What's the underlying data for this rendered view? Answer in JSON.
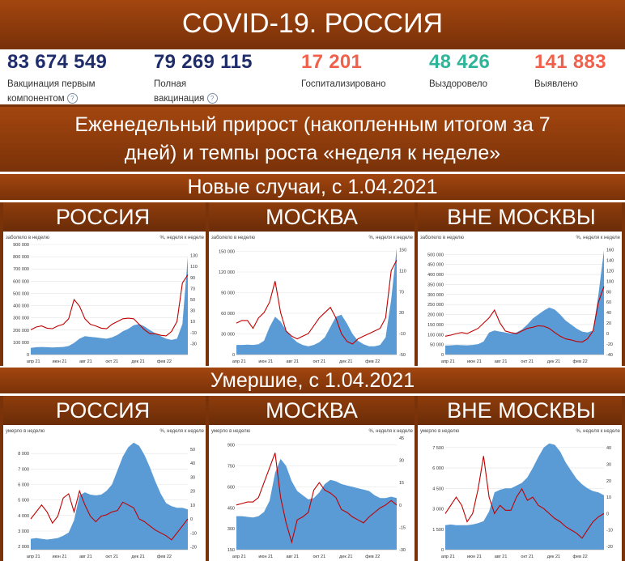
{
  "title": "COVID-19. РОССИЯ",
  "stats": [
    {
      "value": "83 674 549",
      "label1": "Вакцинация первым",
      "label2": "компонентом",
      "help": "?",
      "color": "#1f2d6b"
    },
    {
      "value": "79 269 115",
      "label1": "Полная",
      "label2": "вакцинация",
      "help": "?",
      "color": "#1f2d6b"
    },
    {
      "value": "17 201",
      "label1": "Госпитализировано",
      "label2": "",
      "help": "",
      "color": "#f0604a"
    },
    {
      "value": "48 426",
      "label1": "Выздоровело",
      "label2": "",
      "help": "",
      "color": "#2fb69a"
    },
    {
      "value": "141 883",
      "label1": "Выявлено",
      "label2": "",
      "help": "",
      "color": "#f0604a"
    }
  ],
  "weekly_heading_line1": "Еженедельный прирост (накопленным итогом за 7",
  "weekly_heading_line2": "дней) и темпы роста «неделя к неделе»",
  "section_new_cases": "Новые случаи, с 1.04.2021",
  "section_deaths": "Умершие, с 1.04.2021",
  "regions": [
    "РОССИЯ",
    "МОСКВА",
    "ВНЕ МОСКВЫ"
  ],
  "colors": {
    "area": "#5b9bd5",
    "line": "#c00000",
    "band": "#8f3d0c"
  },
  "chart_data": [
    {
      "type": "area",
      "title": "РОССИЯ — новые случаи",
      "left_label": "заболело в неделю",
      "right_label": "%, неделя к неделе",
      "ylim": [
        0,
        900000
      ],
      "yticks": [
        0,
        100000,
        200000,
        300000,
        400000,
        500000,
        600000,
        700000,
        800000,
        900000
      ],
      "ylabels": [
        "0",
        "100 000",
        "200 000",
        "300 000",
        "400 000",
        "500 000",
        "600 000",
        "700 000",
        "800 000",
        "900 000"
      ],
      "y2lim": [
        -50,
        150
      ],
      "y2ticks": [
        -30,
        -10,
        10,
        30,
        50,
        70,
        90,
        110,
        130
      ],
      "y2labels": [
        "-30",
        "-10",
        "10",
        "30",
        "50",
        "70",
        "90",
        "110",
        "130"
      ],
      "xticks": [
        "апр 21",
        "июн 21",
        "авг 21",
        "окт 21",
        "дек 21",
        "фев 22"
      ],
      "area": [
        55000,
        60000,
        62000,
        60000,
        58000,
        60000,
        62000,
        70000,
        95000,
        130000,
        150000,
        145000,
        140000,
        135000,
        130000,
        140000,
        160000,
        190000,
        210000,
        240000,
        250000,
        230000,
        200000,
        175000,
        150000,
        130000,
        120000,
        130000,
        250000,
        800000
      ],
      "line": [
        -5,
        0,
        2,
        -2,
        -3,
        2,
        5,
        15,
        50,
        38,
        15,
        5,
        2,
        -2,
        -3,
        5,
        10,
        15,
        16,
        15,
        5,
        -5,
        -12,
        -12,
        -15,
        -16,
        -8,
        10,
        80,
        95
      ]
    },
    {
      "type": "area",
      "title": "МОСКВА — новые случаи",
      "left_label": "заболело в неделю",
      "right_label": "%, неделя к неделе",
      "ylim": [
        0,
        160000
      ],
      "yticks": [
        0,
        30000,
        60000,
        90000,
        120000,
        150000
      ],
      "ylabels": [
        "0",
        "30 000",
        "60 000",
        "90 000",
        "120 000",
        "150 000"
      ],
      "y2lim": [
        -50,
        160
      ],
      "y2ticks": [
        -50,
        -10,
        30,
        70,
        110,
        150
      ],
      "y2labels": [
        "-50",
        "-10",
        "30",
        "70",
        "110",
        "150"
      ],
      "xticks": [
        "апр 21",
        "июн 21",
        "авг 21",
        "окт 21",
        "дек 21",
        "фев 22"
      ],
      "area": [
        14000,
        14000,
        14500,
        14000,
        15000,
        20000,
        40000,
        55000,
        48000,
        35000,
        25000,
        18000,
        14000,
        12000,
        14000,
        18000,
        25000,
        40000,
        55000,
        58000,
        45000,
        30000,
        20000,
        15000,
        12000,
        12000,
        14000,
        25000,
        80000,
        155000
      ],
      "line": [
        10,
        15,
        15,
        0,
        20,
        30,
        50,
        90,
        30,
        -5,
        -15,
        -20,
        -15,
        -10,
        5,
        20,
        30,
        40,
        20,
        -10,
        -25,
        -30,
        -20,
        -15,
        -10,
        -5,
        0,
        20,
        110,
        130
      ]
    },
    {
      "type": "area",
      "title": "ВНЕ МОСКВЫ — новые случаи",
      "left_label": "заболело в неделю",
      "right_label": "%, неделя к неделе",
      "ylim": [
        0,
        550000
      ],
      "yticks": [
        0,
        50000,
        100000,
        150000,
        200000,
        250000,
        300000,
        350000,
        400000,
        450000,
        500000
      ],
      "ylabels": [
        "0",
        "50 000",
        "100 000",
        "150 000",
        "200 000",
        "250 000",
        "300 000",
        "350 000",
        "400 000",
        "450 000",
        "500 000"
      ],
      "y2lim": [
        -40,
        170
      ],
      "y2ticks": [
        -40,
        -20,
        0,
        20,
        40,
        60,
        80,
        100,
        120,
        140,
        160
      ],
      "y2labels": [
        "-40",
        "-20",
        "0",
        "20",
        "40",
        "60",
        "80",
        "100",
        "120",
        "140",
        "160"
      ],
      "xticks": [
        "апр 21",
        "июн 21",
        "авг 21",
        "окт 21",
        "дек 21",
        "фев 22"
      ],
      "area": [
        45000,
        46000,
        48000,
        47000,
        46000,
        48000,
        52000,
        65000,
        110000,
        120000,
        115000,
        110000,
        105000,
        110000,
        125000,
        150000,
        180000,
        200000,
        220000,
        235000,
        225000,
        200000,
        170000,
        150000,
        130000,
        115000,
        110000,
        120000,
        300000,
        520000
      ],
      "line": [
        -5,
        -3,
        0,
        2,
        0,
        5,
        10,
        20,
        30,
        45,
        20,
        5,
        2,
        0,
        5,
        10,
        12,
        15,
        14,
        10,
        2,
        -5,
        -10,
        -12,
        -15,
        -16,
        -10,
        5,
        60,
        90
      ]
    },
    {
      "type": "area",
      "title": "РОССИЯ — умершие",
      "left_label": "умерло в неделю",
      "right_label": "%, неделя к неделе",
      "ylim": [
        1800,
        9000
      ],
      "yticks": [
        2000,
        3000,
        4000,
        5000,
        6000,
        7000,
        8000
      ],
      "ylabels": [
        "2 000",
        "3 000",
        "4 000",
        "5 000",
        "6 000",
        "7 000",
        "8 000"
      ],
      "y2lim": [
        -22,
        58
      ],
      "y2ticks": [
        -20,
        -10,
        0,
        10,
        20,
        30,
        40,
        50
      ],
      "y2labels": [
        "-20",
        "-10",
        "0",
        "10",
        "20",
        "30",
        "40",
        "50"
      ],
      "xticks": [
        "апр 21",
        "июн 21",
        "авг 21",
        "окт 21",
        "дек 21",
        "фев 22"
      ],
      "area": [
        2500,
        2550,
        2500,
        2450,
        2500,
        2550,
        2700,
        2900,
        3700,
        5300,
        5500,
        5350,
        5300,
        5350,
        5600,
        6000,
        6900,
        7800,
        8400,
        8700,
        8500,
        7900,
        7100,
        6200,
        5400,
        4800,
        4600,
        4500,
        4500,
        4400
      ],
      "line": [
        0,
        5,
        10,
        5,
        -3,
        2,
        15,
        18,
        5,
        20,
        10,
        2,
        -2,
        2,
        3,
        5,
        6,
        12,
        10,
        8,
        0,
        -2,
        -5,
        -8,
        -10,
        -12,
        -15,
        -10,
        -5,
        0
      ]
    },
    {
      "type": "area",
      "title": "МОСКВА — умершие",
      "left_label": "умерло в неделю",
      "right_label": "%, неделя к неделе",
      "ylim": [
        150,
        950
      ],
      "yticks": [
        150,
        300,
        450,
        600,
        750,
        900
      ],
      "ylabels": [
        "150",
        "300",
        "450",
        "600",
        "750",
        "900"
      ],
      "y2lim": [
        -30,
        45
      ],
      "y2ticks": [
        -30,
        -15,
        0,
        15,
        30,
        45
      ],
      "y2labels": [
        "-30",
        "-15",
        "0",
        "15",
        "30",
        "45"
      ],
      "xticks": [
        "апр 21",
        "июн 21",
        "авг 21",
        "окт 21",
        "дек 21",
        "фев 22"
      ],
      "area": [
        390,
        390,
        385,
        380,
        390,
        420,
        500,
        700,
        800,
        750,
        640,
        570,
        540,
        510,
        520,
        560,
        620,
        650,
        640,
        620,
        610,
        600,
        590,
        580,
        570,
        540,
        520,
        520,
        530,
        520
      ],
      "line": [
        0,
        1,
        2,
        2,
        5,
        15,
        25,
        35,
        5,
        -12,
        -25,
        -10,
        -8,
        -5,
        10,
        15,
        10,
        8,
        5,
        -3,
        -5,
        -8,
        -10,
        -12,
        -8,
        -5,
        -2,
        0,
        3,
        0
      ]
    },
    {
      "type": "area",
      "title": "ВНЕ МОСКВЫ — умершие",
      "left_label": "умерло в неделю",
      "right_label": "%, неделя к неделе",
      "ylim": [
        0,
        8200
      ],
      "yticks": [
        0,
        1500,
        3000,
        4500,
        6000,
        7500
      ],
      "ylabels": [
        "0",
        "1 500",
        "3 000",
        "4 500",
        "6 000",
        "7 500"
      ],
      "y2lim": [
        -22,
        46
      ],
      "y2ticks": [
        -20,
        -10,
        0,
        10,
        20,
        30,
        40
      ],
      "y2labels": [
        "-20",
        "-10",
        "0",
        "10",
        "20",
        "30",
        "40"
      ],
      "xticks": [
        "апр 21",
        "июн 21",
        "авг 21",
        "окт 21",
        "дек 21",
        "фев 22"
      ],
      "area": [
        1800,
        1850,
        1800,
        1800,
        1800,
        1850,
        1950,
        2100,
        2800,
        4200,
        4400,
        4500,
        4500,
        4700,
        4900,
        5300,
        6000,
        6800,
        7500,
        7800,
        7700,
        7200,
        6400,
        5800,
        5200,
        4800,
        4500,
        4300,
        4200,
        4000
      ],
      "line": [
        0,
        5,
        10,
        5,
        -5,
        0,
        15,
        35,
        10,
        0,
        5,
        2,
        2,
        10,
        15,
        8,
        10,
        5,
        3,
        0,
        -3,
        -5,
        -8,
        -10,
        -12,
        -15,
        -10,
        -5,
        -2,
        0
      ]
    }
  ]
}
